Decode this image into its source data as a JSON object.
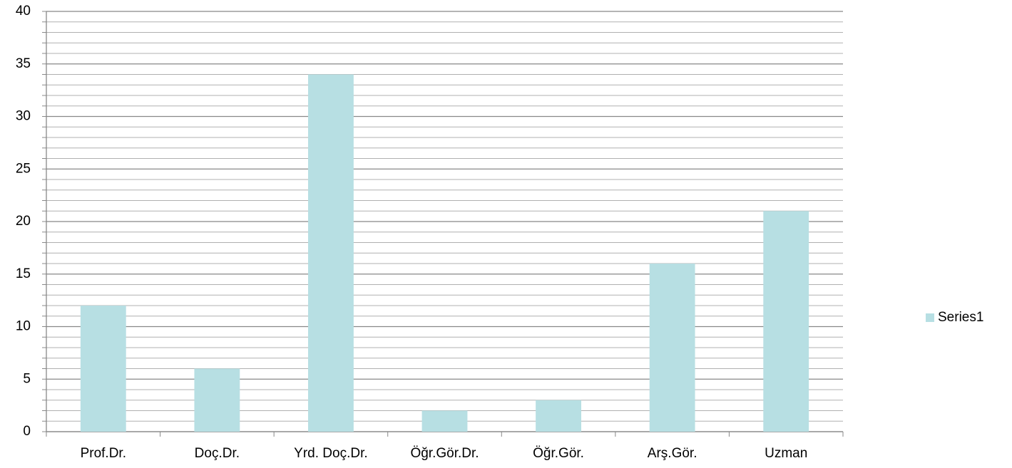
{
  "chart_data": {
    "type": "bar",
    "categories": [
      "Prof.Dr.",
      "Doç.Dr.",
      "Yrd. Doç.Dr.",
      "Öğr.Gör.Dr.",
      "Öğr.Gör.",
      "Arş.Gör.",
      "Uzman"
    ],
    "series": [
      {
        "name": "Series1",
        "color": "#b7dfe3",
        "values": [
          12,
          6,
          34,
          2,
          3,
          16,
          21
        ]
      }
    ],
    "ylim": [
      0,
      40
    ],
    "yticks": [
      0,
      5,
      10,
      15,
      20,
      25,
      30,
      35,
      40
    ],
    "minor_yticks": [
      1,
      2,
      3,
      4,
      6,
      7,
      8,
      9,
      11,
      12,
      13,
      14,
      16,
      17,
      18,
      19,
      21,
      22,
      23,
      24,
      26,
      27,
      28,
      29,
      31,
      32,
      33,
      34,
      36,
      37,
      38,
      39
    ],
    "grid": true,
    "legend": "right"
  }
}
